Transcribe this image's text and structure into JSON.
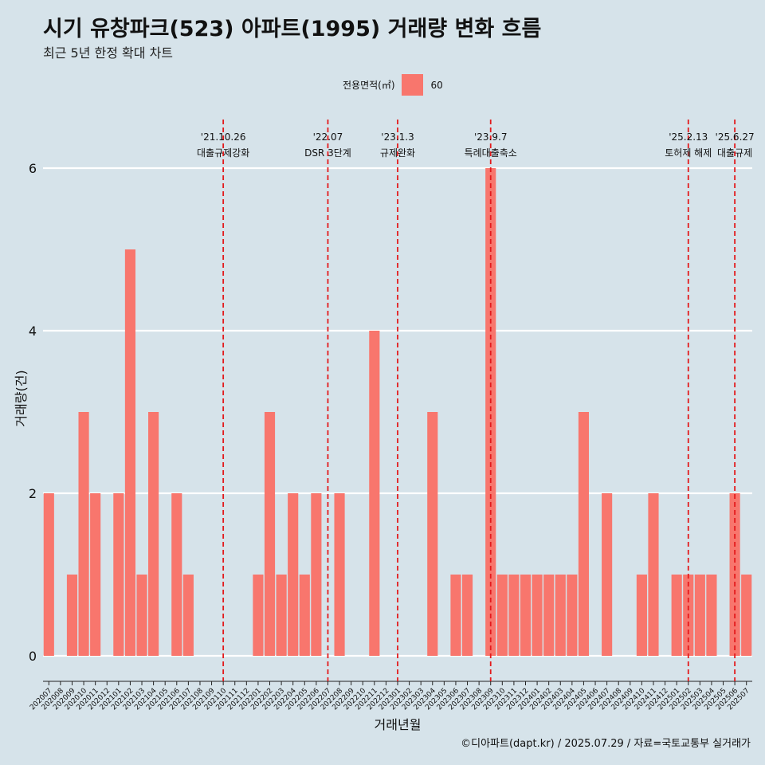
{
  "page": {
    "title": "시기 유창파크(523) 아파트(1995) 거래량 변화 흐름",
    "subtitle": "최근 5년 한정 확대 차트",
    "caption": "©디아파트(dapt.kr) / 2025.07.29 / 자료=국토교통부 실거래가"
  },
  "legend": {
    "title": "전용면적(㎡)",
    "items": [
      {
        "label": "60",
        "color": "#f8766d"
      }
    ],
    "position": "top"
  },
  "colors": {
    "background": "#d6e3ea",
    "bar": "#f8766d",
    "grid": "#ffffff",
    "event_line": "#e31a1c"
  },
  "chart_data": {
    "type": "bar",
    "xlabel": "거래년월",
    "ylabel": "거래량(건)",
    "ylim": [
      0,
      6
    ],
    "yticks": [
      0,
      2,
      4,
      6
    ],
    "categories": [
      "202007",
      "202008",
      "202009",
      "202010",
      "202011",
      "202012",
      "202101",
      "202102",
      "202103",
      "202104",
      "202105",
      "202106",
      "202107",
      "202108",
      "202109",
      "202110",
      "202111",
      "202112",
      "202201",
      "202202",
      "202203",
      "202204",
      "202205",
      "202206",
      "202207",
      "202208",
      "202209",
      "202210",
      "202211",
      "202212",
      "202301",
      "202302",
      "202303",
      "202304",
      "202305",
      "202306",
      "202307",
      "202308",
      "202309",
      "202310",
      "202311",
      "202312",
      "202401",
      "202402",
      "202403",
      "202404",
      "202405",
      "202406",
      "202407",
      "202408",
      "202409",
      "202410",
      "202411",
      "202412",
      "202501",
      "202502",
      "202503",
      "202504",
      "202505",
      "202506",
      "202507"
    ],
    "series": [
      {
        "name": "60",
        "values": [
          2,
          0,
          1,
          3,
          2,
          0,
          2,
          5,
          1,
          3,
          0,
          2,
          1,
          0,
          0,
          0,
          0,
          0,
          1,
          3,
          1,
          2,
          1,
          2,
          0,
          2,
          0,
          0,
          4,
          0,
          0,
          0,
          0,
          3,
          0,
          1,
          1,
          0,
          6,
          1,
          1,
          1,
          1,
          1,
          1,
          1,
          3,
          0,
          2,
          0,
          0,
          1,
          2,
          0,
          1,
          1,
          1,
          1,
          0,
          2,
          1
        ]
      }
    ],
    "events": [
      {
        "category": "202110",
        "date": "'21.10.26",
        "label": "대출규제강화"
      },
      {
        "category": "202207",
        "date": "'22.07",
        "label": "DSR 3단계"
      },
      {
        "category": "202301",
        "date": "'23.1.3",
        "label": "규제완화"
      },
      {
        "category": "202309",
        "date": "'23.9.7",
        "label": "특례대출축소"
      },
      {
        "category": "202502",
        "date": "'25.2.13",
        "label": "토허제 해제"
      },
      {
        "category": "202506",
        "date": "'25.6.27",
        "label": "대출규제"
      }
    ],
    "grid": true
  }
}
